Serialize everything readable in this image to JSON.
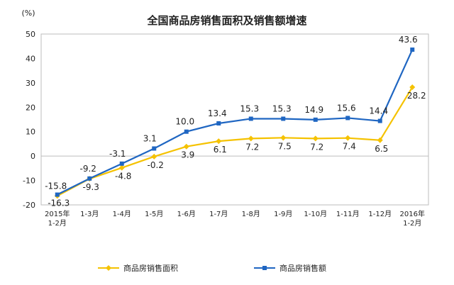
{
  "chart_data": {
    "type": "line",
    "title": "全国商品房销售面积及销售额增速",
    "ylabel": "(%)",
    "ylim": [
      -20,
      50
    ],
    "yticks": [
      -20,
      -10,
      0,
      10,
      20,
      30,
      40,
      50
    ],
    "categories": [
      [
        "2015年",
        "1-2月"
      ],
      [
        "1-3月"
      ],
      [
        "1-4月"
      ],
      [
        "1-5月"
      ],
      [
        "1-6月"
      ],
      [
        "1-7月"
      ],
      [
        "1-8月"
      ],
      [
        "1-9月"
      ],
      [
        "1-10月"
      ],
      [
        "1-11月"
      ],
      [
        "1-12月"
      ],
      [
        "2016年",
        "1-2月"
      ]
    ],
    "series": [
      {
        "name": "商品房销售面积",
        "color": "#f5c200",
        "marker": "diamond",
        "values": [
          -16.3,
          -9.3,
          -4.8,
          -0.2,
          3.9,
          6.1,
          7.2,
          7.5,
          7.2,
          7.4,
          6.5,
          28.2
        ],
        "labels": [
          "-16.3",
          "-9.3",
          "-4.8",
          "-0.2",
          "3.9",
          "6.1",
          "7.2",
          "7.5",
          "7.2",
          "7.4",
          "6.5",
          "28.2"
        ]
      },
      {
        "name": "商品房销售额",
        "color": "#1f66c2",
        "marker": "square",
        "values": [
          -15.8,
          -9.2,
          -3.1,
          3.1,
          10.0,
          13.4,
          15.3,
          15.3,
          14.9,
          15.6,
          14.4,
          43.6
        ],
        "labels": [
          "-15.8",
          "-9.2",
          "-3.1",
          "3.1",
          "10.0",
          "13.4",
          "15.3",
          "15.3",
          "14.9",
          "15.6",
          "14.4",
          "43.6"
        ]
      }
    ],
    "legend": "bottom",
    "grid": false
  }
}
